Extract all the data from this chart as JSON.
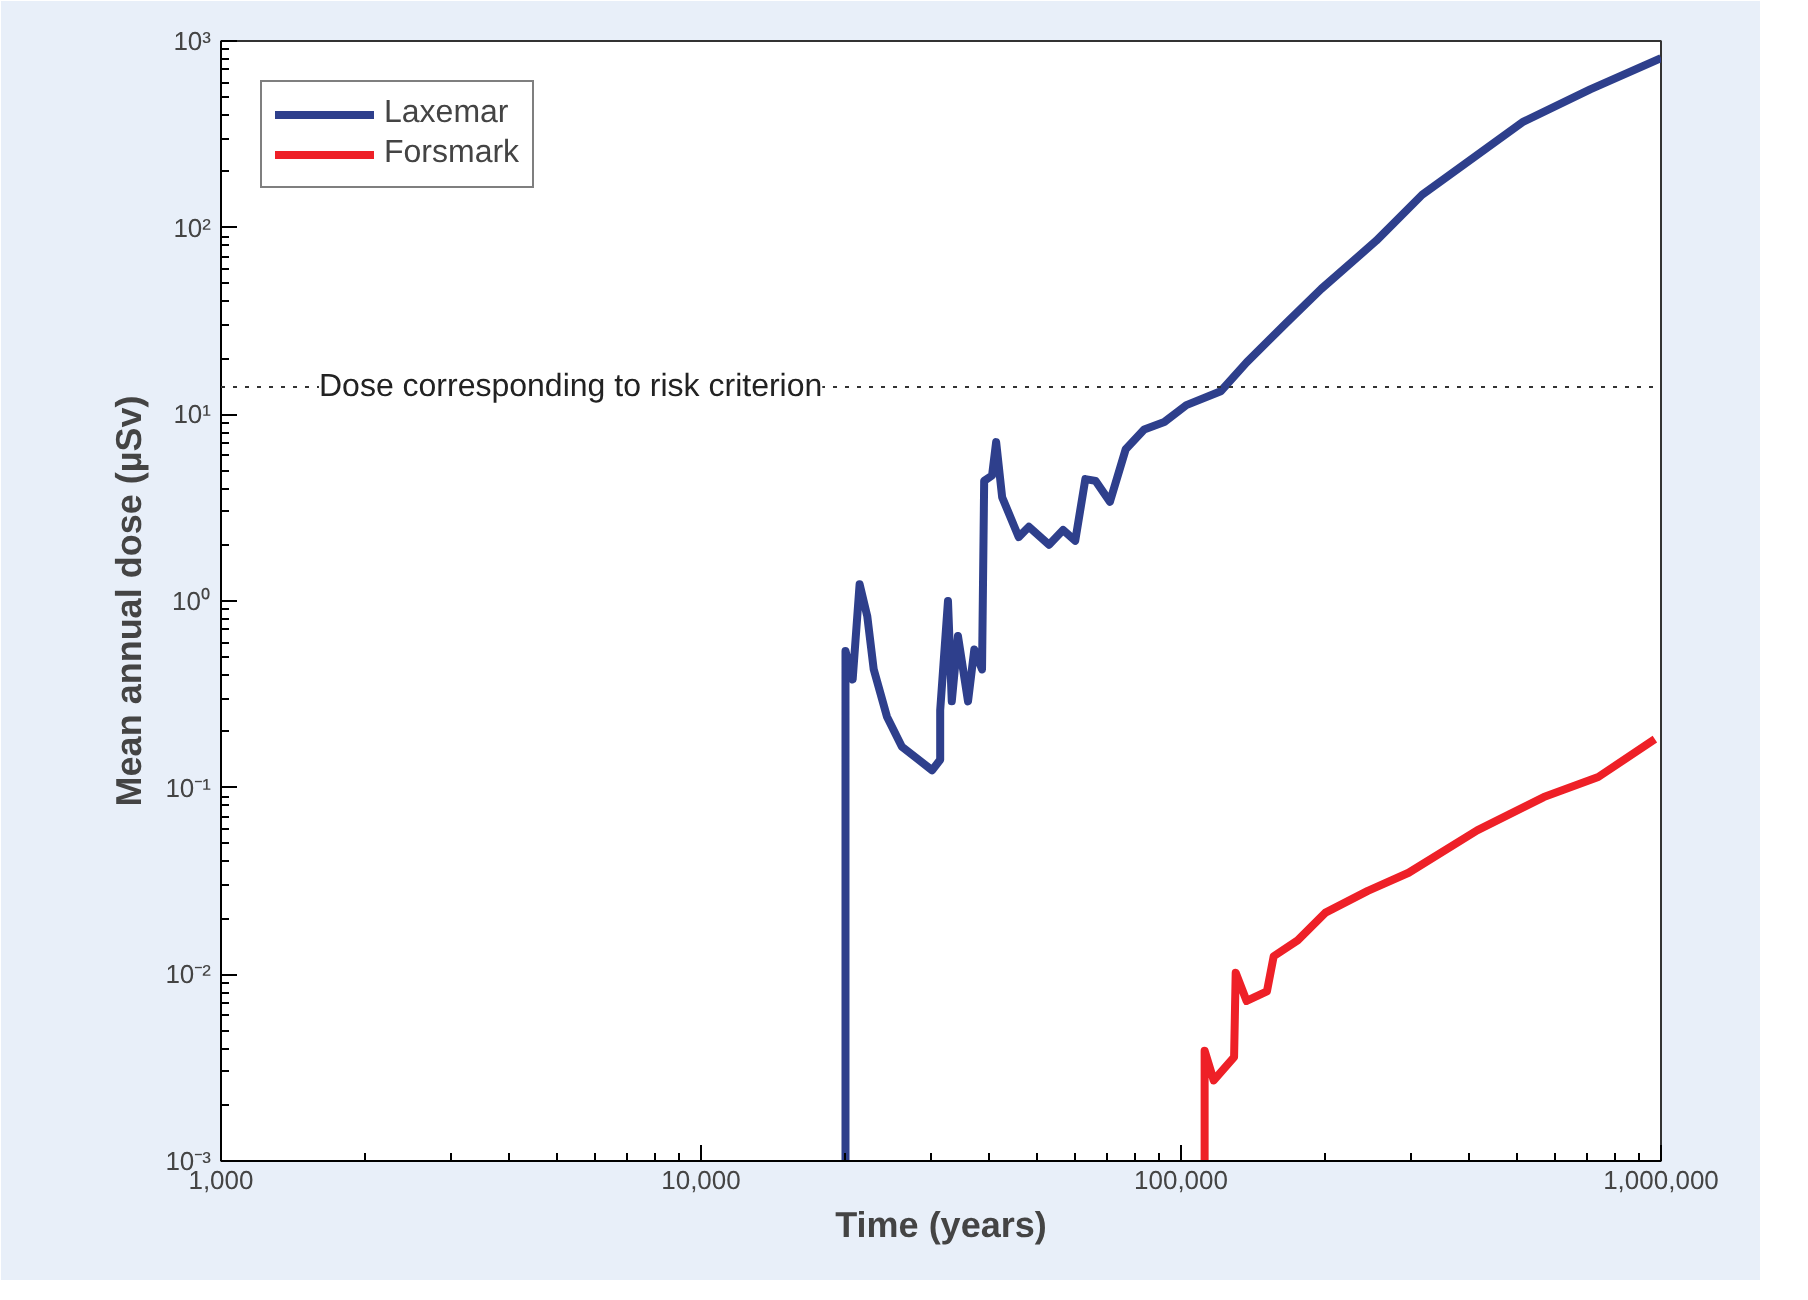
{
  "chart_data": {
    "type": "line",
    "xlabel": "Time (years)",
    "ylabel": "Mean annual dose (µSv)",
    "log": "xy",
    "grid": false,
    "legend": "top left",
    "line_style": "solid",
    "marker": "none",
    "xlim": [
      1000,
      1000000
    ],
    "ylim": [
      0.001,
      1000
    ],
    "xticks": [
      {
        "value": 1000,
        "label": "1,000"
      },
      {
        "value": 10000,
        "label": "10,000"
      },
      {
        "value": 100000,
        "label": "100,000"
      },
      {
        "value": 1000000,
        "label": "1,000,000"
      }
    ],
    "yticks": [
      {
        "value": 0.001,
        "label": "10⁻³"
      },
      {
        "value": 0.01,
        "label": "10⁻²"
      },
      {
        "value": 0.1,
        "label": "10⁻¹"
      },
      {
        "value": 1,
        "label": "10⁰"
      },
      {
        "value": 10,
        "label": "10¹"
      },
      {
        "value": 100,
        "label": "10²"
      },
      {
        "value": 1000,
        "label": "10³"
      }
    ],
    "ref_lines": [
      {
        "axis": "y",
        "value": 14,
        "label": "Dose corresponding to risk criterion",
        "line_style": "dotted",
        "color": "#333333"
      }
    ],
    "series": [
      {
        "name": "Laxemar",
        "color": "#2e3f8c",
        "x": [
          20000,
          20000,
          20700,
          21400,
          22200,
          22900,
          24400,
          26200,
          30300,
          31500,
          31500,
          32700,
          33300,
          34300,
          36000,
          37100,
          38500,
          38900,
          40400,
          41200,
          42400,
          45900,
          48200,
          53100,
          56800,
          60200,
          63200,
          66400,
          71100,
          76700,
          83800,
          92300,
          102600,
          121000,
          137000,
          166000,
          196000,
          255000,
          318000,
          414000,
          517000,
          712000,
          1000000
        ],
        "values": [
          0.001,
          0.54,
          0.38,
          1.23,
          0.83,
          0.43,
          0.24,
          0.166,
          0.124,
          0.141,
          0.26,
          1.0,
          0.29,
          0.65,
          0.29,
          0.55,
          0.43,
          4.4,
          4.7,
          7.1,
          3.6,
          2.2,
          2.5,
          2.0,
          2.4,
          2.1,
          4.5,
          4.4,
          3.4,
          6.5,
          8.3,
          9.1,
          11.2,
          13.3,
          19,
          31,
          47,
          85,
          150,
          245,
          370,
          550,
          810
        ]
      },
      {
        "name": "Forsmark",
        "color": "#ee2027",
        "x": [
          112000,
          112000,
          117000,
          129000,
          130000,
          137000,
          151000,
          156000,
          175000,
          200000,
          245000,
          298000,
          414000,
          570000,
          740000,
          971000
        ],
        "values": [
          0.001,
          0.0039,
          0.0027,
          0.0036,
          0.0102,
          0.0072,
          0.0081,
          0.0125,
          0.0152,
          0.0214,
          0.028,
          0.035,
          0.059,
          0.089,
          0.114,
          0.182
        ]
      }
    ]
  }
}
